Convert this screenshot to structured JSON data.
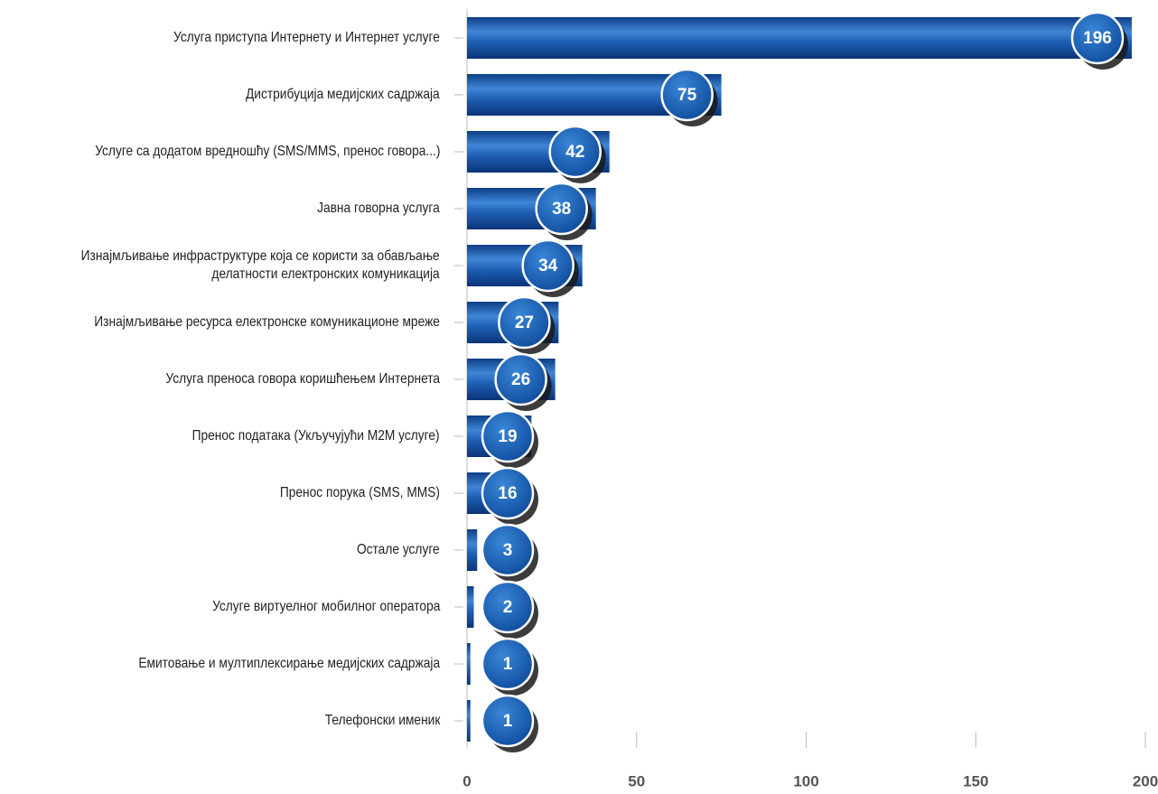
{
  "chart_data": {
    "type": "barh",
    "categories": [
      "Услуга приступа Интернету и Интернет услуге",
      "Дистрибуција медијских садржаја",
      "Услуге са додатом вредношћу (SMS/MMS, пренос говора...)",
      "Јавна говорна услуга",
      "Изнајмљивање инфраструктуре која се користи за обављање\nделатности електронских комуникација",
      "Изнајмљивање ресурса електронске комуникационе мреже",
      "Услуга преноса говора коришћењем Интернета",
      "Пренос података (Укључујући M2M услуге)",
      "Пренос порука (SMS, MMS)",
      "Остале услуге",
      "Услуге виртуелног мобилног оператора",
      "Емитовање и мултиплексирање медијских садржаја",
      "Телефонски именик"
    ],
    "values": [
      196,
      75,
      42,
      38,
      34,
      27,
      26,
      19,
      16,
      3,
      2,
      1,
      1
    ],
    "color": "#1a5aa8",
    "xlim": [
      0,
      200
    ],
    "xticks": [
      0,
      50,
      100,
      150,
      200
    ]
  }
}
